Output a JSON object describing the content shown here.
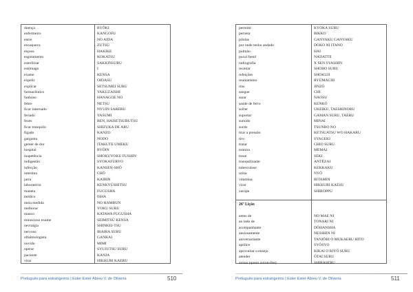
{
  "left_page": {
    "rows": [
      [
        "doença",
        "BYŌKI"
      ],
      [
        "enfermeiro",
        "KANGOFU"
      ],
      [
        "entre",
        "NO AIDA"
      ],
      [
        "enxaqueca",
        "ZUTSŪ"
      ],
      [
        "enjoos",
        "HAKIKE"
      ],
      [
        "esgotamento",
        "KOKATSU"
      ],
      [
        "esterilizar",
        "SAKKINSURU"
      ],
      [
        "estômago",
        "I"
      ],
      [
        "exame",
        "KENSA"
      ],
      [
        "expelir",
        "OIDASU"
      ],
      [
        "explicar",
        "SETSUMEI SURU"
      ],
      [
        "farmacêutico",
        "YAKUZAISHI"
      ],
      [
        "fanhoso",
        "HANAGOE NO"
      ],
      [
        "febre",
        "NETSU"
      ],
      [
        "ficar internado",
        "NYUIN SARERU"
      ],
      [
        "feriado",
        "YASUMI"
      ],
      [
        "fezes",
        "BEN, HAISETSUBUTSU"
      ],
      [
        "ficar tranquilo",
        "SHIZUKA DE ARU"
      ],
      [
        "fígado",
        "KANZO"
      ],
      [
        "garganta",
        "NODO"
      ],
      [
        "gemer de dor",
        "ITAKUTE UMEKU"
      ],
      [
        "hospital",
        "BYŌIN"
      ],
      [
        "inapetência",
        "SHOKUYOKU FUSHIN"
      ],
      [
        "indigestão",
        "SYOKAFURYO"
      ],
      [
        "infecção",
        "KANSEN-SHŌ"
      ],
      [
        "intestino",
        "CHŌ"
      ],
      [
        "jarra",
        "KAIBIN"
      ],
      [
        "laboratório",
        "KENKYŪSHITSU"
      ],
      [
        "maneta",
        "FUGUSHA"
      ],
      [
        "médico",
        "ISHA"
      ],
      [
        "meia medida",
        "NO HAMBUN"
      ],
      [
        "melhorar",
        "YOKU SURU"
      ],
      [
        "manco",
        "KATAWA FUGUSHA"
      ],
      [
        "minucioso exame",
        "SEIMITSŪ KENSA"
      ],
      [
        "nevralgia",
        "SHINKEI-TSU"
      ],
      [
        "nervoso",
        "IRAIRA SURU"
      ],
      [
        "oftalmologista",
        "GANKAI"
      ],
      [
        "ouvido",
        "MIMI"
      ],
      [
        "operar",
        "SYUJUTSU SURU"
      ],
      [
        "paciente",
        "KANJA"
      ],
      [
        "virar",
        "HIKKURI KAERU"
      ]
    ],
    "footer": "Português para estrangeiros | Ester Ester Abreu V. de Oliveira",
    "page_number": "510"
  },
  "right_page": {
    "rows": [
      [
        "permitir",
        "KYOKA SURU"
      ],
      [
        "perneta",
        "BIKKO"
      ],
      [
        "pílulas",
        "GANYAKU GANYAKU"
      ],
      [
        "por onde tenho andado",
        "DOKO NI ITANO"
      ],
      [
        "pulmão",
        "HAI"
      ],
      [
        "puxa!/bem!",
        "NADATTE"
      ],
      [
        "radiografia",
        "X SEN SYASHIN"
      ],
      [
        "receitar",
        "SHOHO SURU"
      ],
      [
        "refeições",
        "SHOKUJI"
      ],
      [
        "reumatismo",
        "RYŪMACHI"
      ],
      [
        "rins",
        "JINZŌ"
      ],
      [
        "sangue",
        "CHI"
      ],
      [
        "sarar",
        "NAOSU"
      ],
      [
        "saúde de ferro",
        "KENKŌ"
      ],
      [
        "sofrer",
        "UKEIKU, TAESHINOBU"
      ],
      [
        "suportar",
        "GAMAN SURU, TAERU"
      ],
      [
        "sumido",
        "MINAI"
      ],
      [
        "surdo",
        "TSUNBO NO"
      ],
      [
        "tirar a pressão",
        "KETSUATSU WO HAKARU"
      ],
      [
        "tiro",
        "SYAGEKI"
      ],
      [
        "tratar",
        "CHIO SURU"
      ],
      [
        "tontura",
        "MEMAI"
      ],
      [
        "tosse",
        "SEKI"
      ],
      [
        "tranquilizante",
        "ANTĒZAI"
      ],
      [
        "tuberculose",
        "KEKKAKU"
      ],
      [
        "urina",
        "NYŌ"
      ],
      [
        "vitamina",
        "BITAMIN"
      ],
      [
        "virar",
        "HIKKURI KAESU"
      ],
      [
        "xarope",
        "SHIROPPU"
      ]
    ],
    "section_title": "26ª Lição",
    "section_rows": [
      [
        "antes de",
        "NO MAE NI"
      ],
      [
        "ao lado de",
        "TONARI NI"
      ],
      [
        "acompanhante",
        "DŌHANSHA"
      ],
      [
        "ansiosamente",
        "NESSHIN NI"
      ],
      [
        "aniversariante",
        "TANJŌBI O MUKAERU HITO"
      ],
      [
        "apólice",
        "SYŌSYO"
      ],
      [
        "aproveitar o ensejo",
        "KIKAI O RIYŌ SURU"
      ],
      [
        "atender",
        "ŌTAI SURU"
      ],
      [
        "avisar (quero avisar-lhe)",
        "SHIRASERU"
      ]
    ],
    "footer": "Português para estrangeiros | Ester Ester Abreu V. de Oliveira",
    "page_number": "511"
  }
}
